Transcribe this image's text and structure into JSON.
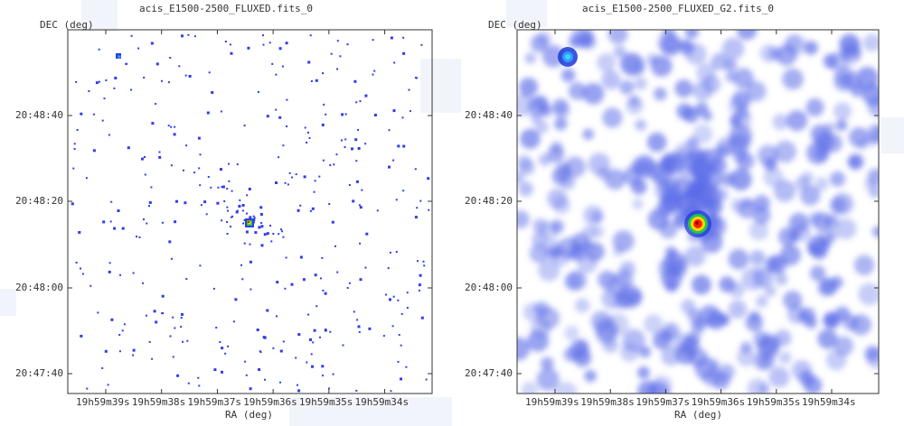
{
  "colors": {
    "background": "#ffffff",
    "sparse_point": "#2f3ee8",
    "smooth_blob": "#5b6ce8",
    "hot_core": "#ff2200",
    "hot_mid": "#ffd400",
    "hot_outer": "#22cc44",
    "frame": "#333333"
  },
  "panels": [
    {
      "title": "acis_E1500-2500_FLUXED.fits_0",
      "dec_label": "DEC (deg)",
      "ra_label": "RA (deg)",
      "image_style": "sparse-counts"
    },
    {
      "title": "acis_E1500-2500_FLUXED_G2.fits_0",
      "dec_label": "DEC (deg)",
      "ra_label": "RA (deg)",
      "image_style": "gaussian-smoothed"
    }
  ],
  "chart_data": [
    {
      "type": "scatter",
      "title": "acis_E1500-2500_FLUXED.fits_0",
      "xlabel": "RA (deg)",
      "ylabel": "DEC (deg)",
      "x_ticks": [
        "19h59m39s",
        "19h59m38s",
        "19h59m37s",
        "19h59m36s",
        "19h59m35s",
        "19h59m34s"
      ],
      "y_ticks": [
        "20:48:40",
        "20:48:20",
        "20:48:00",
        "20:47:40"
      ],
      "sources": [
        {
          "ra": "19h59m39.1s",
          "dec": "20:48:53"
        },
        {
          "ra": "19h59m36.9s",
          "dec": "20:48:16"
        }
      ]
    },
    {
      "type": "heatmap",
      "title": "acis_E1500-2500_FLUXED_G2.fits_0",
      "xlabel": "RA (deg)",
      "ylabel": "DEC (deg)",
      "x_ticks": [
        "19h59m39s",
        "19h59m38s",
        "19h59m37s",
        "19h59m36s",
        "19h59m35s",
        "19h59m34s"
      ],
      "y_ticks": [
        "20:48:40",
        "20:48:20",
        "20:48:00",
        "20:47:40"
      ],
      "sources": [
        {
          "ra": "19h59m39.1s",
          "dec": "20:48:53"
        },
        {
          "ra": "19h59m36.9s",
          "dec": "20:48:16"
        }
      ]
    }
  ]
}
